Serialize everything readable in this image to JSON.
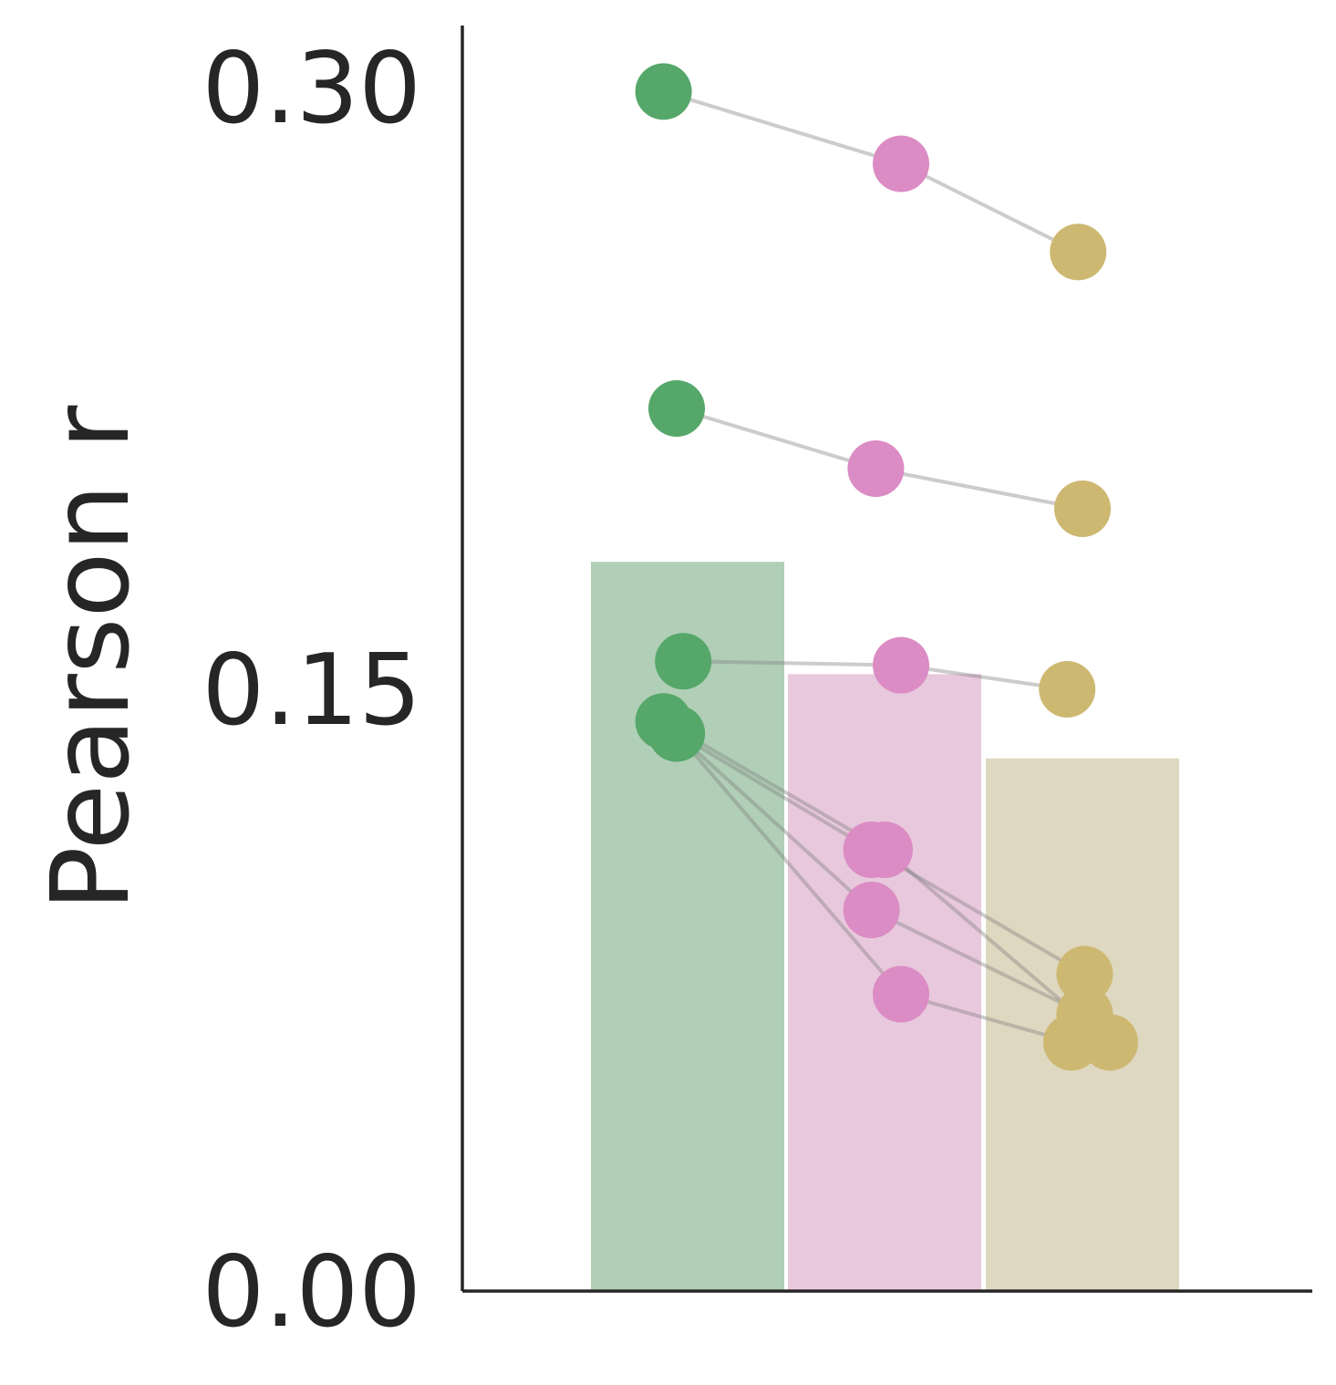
{
  "chart_data": {
    "type": "bar",
    "title": "",
    "xlabel": "",
    "ylabel": "Pearson r",
    "ylim": [
      0,
      0.315
    ],
    "yticks": [
      "0.00",
      "0.15",
      "0.30"
    ],
    "grid": false,
    "categories": [
      "",
      "",
      ""
    ],
    "colors": {
      "bar": [
        "#b0cfb6",
        "#e8c8dc",
        "#dfd8c0"
      ],
      "point": [
        "#56a76a",
        "#db8cc4",
        "#cdb872"
      ],
      "line": "#808080",
      "axis": "#262626"
    },
    "bar_values": [
      0.182,
      0.154,
      0.133
    ],
    "paired_series": [
      {
        "values": [
          0.299,
          0.281,
          0.259
        ],
        "jitter": [
          -0.22,
          0.15,
          -0.04
        ]
      },
      {
        "values": [
          0.22,
          0.205,
          0.195
        ],
        "jitter": [
          -0.1,
          -0.08,
          0.0
        ]
      },
      {
        "values": [
          0.157,
          0.156,
          0.15
        ],
        "jitter": [
          -0.04,
          0.15,
          -0.14
        ]
      },
      {
        "values": [
          0.142,
          0.11,
          0.062
        ],
        "jitter": [
          -0.22,
          0.0,
          0.25
        ]
      },
      {
        "values": [
          0.139,
          0.095,
          0.069
        ],
        "jitter": [
          -0.1,
          -0.12,
          0.02
        ]
      },
      {
        "values": [
          0.139,
          0.11,
          0.079
        ],
        "jitter": [
          -0.1,
          -0.12,
          0.02
        ]
      },
      {
        "values": [
          0.139,
          0.074,
          0.062
        ],
        "jitter": [
          -0.1,
          0.15,
          -0.1
        ]
      }
    ]
  }
}
